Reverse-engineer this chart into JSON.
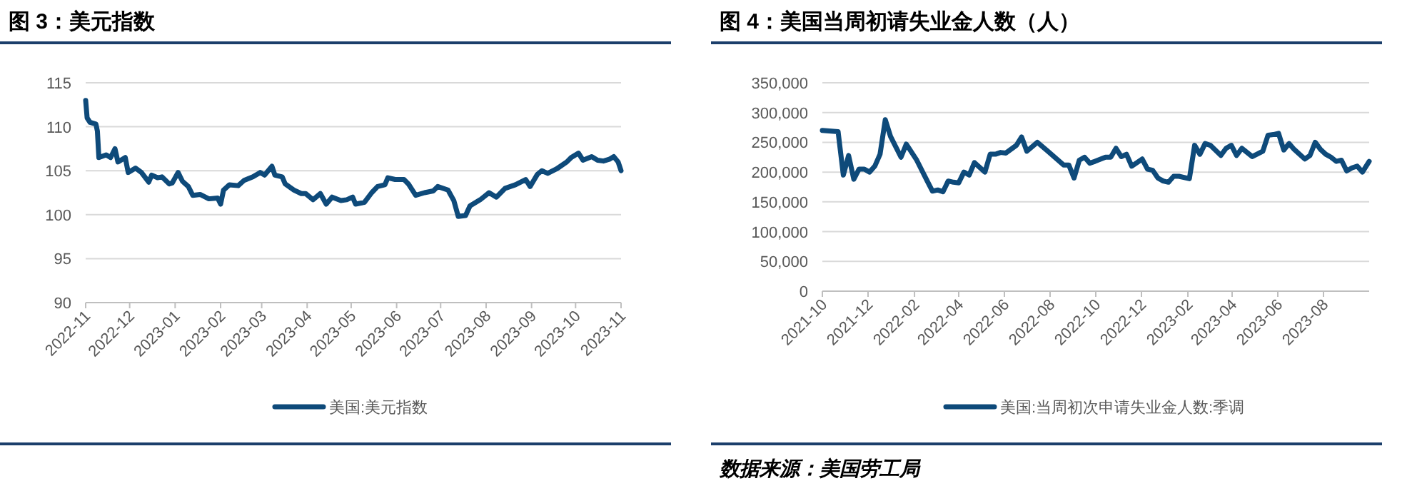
{
  "chart_data": [
    {
      "type": "line",
      "title": "图 3：美元指数",
      "legend": "bottom",
      "grid": "y",
      "xlim": [
        "2022-11-01",
        "2023-11-01"
      ],
      "xticks": [
        {
          "value": "2022-11-01",
          "label": "2022-11"
        },
        {
          "value": "2022-12-01",
          "label": "2022-12"
        },
        {
          "value": "2023-01-01",
          "label": "2023-01"
        },
        {
          "value": "2023-02-01",
          "label": "2023-02"
        },
        {
          "value": "2023-03-01",
          "label": "2023-03"
        },
        {
          "value": "2023-04-01",
          "label": "2023-04"
        },
        {
          "value": "2023-05-01",
          "label": "2023-05"
        },
        {
          "value": "2023-06-01",
          "label": "2023-06"
        },
        {
          "value": "2023-07-01",
          "label": "2023-07"
        },
        {
          "value": "2023-08-01",
          "label": "2023-08"
        },
        {
          "value": "2023-09-01",
          "label": "2023-09"
        },
        {
          "value": "2023-10-01",
          "label": "2023-10"
        },
        {
          "value": "2023-11-01",
          "label": "2023-11"
        }
      ],
      "ylim": [
        90,
        115
      ],
      "yticks": [
        90,
        95,
        100,
        105,
        110,
        115
      ],
      "x": [
        "2022-11-01",
        "2022-11-02",
        "2022-11-04",
        "2022-11-08",
        "2022-11-09",
        "2022-11-10",
        "2022-11-15",
        "2022-11-18",
        "2022-11-21",
        "2022-11-23",
        "2022-11-28",
        "2022-11-30",
        "2022-12-05",
        "2022-12-09",
        "2022-12-14",
        "2022-12-16",
        "2022-12-20",
        "2022-12-23",
        "2022-12-28",
        "2022-12-30",
        "2023-01-03",
        "2023-01-06",
        "2023-01-10",
        "2023-01-13",
        "2023-01-18",
        "2023-01-24",
        "2023-01-30",
        "2023-02-01",
        "2023-02-03",
        "2023-02-07",
        "2023-02-13",
        "2023-02-17",
        "2023-02-23",
        "2023-02-28",
        "2023-03-03",
        "2023-03-08",
        "2023-03-10",
        "2023-03-15",
        "2023-03-17",
        "2023-03-23",
        "2023-03-28",
        "2023-03-31",
        "2023-04-05",
        "2023-04-10",
        "2023-04-14",
        "2023-04-18",
        "2023-04-24",
        "2023-04-28",
        "2023-05-02",
        "2023-05-04",
        "2023-05-10",
        "2023-05-15",
        "2023-05-19",
        "2023-05-24",
        "2023-05-26",
        "2023-05-31",
        "2023-06-06",
        "2023-06-09",
        "2023-06-14",
        "2023-06-20",
        "2023-06-26",
        "2023-06-29",
        "2023-07-06",
        "2023-07-10",
        "2023-07-13",
        "2023-07-18",
        "2023-07-21",
        "2023-07-26",
        "2023-07-28",
        "2023-08-03",
        "2023-08-08",
        "2023-08-14",
        "2023-08-21",
        "2023-08-28",
        "2023-08-31",
        "2023-09-05",
        "2023-09-08",
        "2023-09-12",
        "2023-09-18",
        "2023-09-25",
        "2023-09-28",
        "2023-10-03",
        "2023-10-06",
        "2023-10-12",
        "2023-10-16",
        "2023-10-20",
        "2023-10-24",
        "2023-10-27",
        "2023-10-30",
        "2023-11-01"
      ],
      "series": [
        {
          "name": "美国:美元指数",
          "color": "#0e4a7a",
          "values": [
            113,
            111,
            110.5,
            110.3,
            109.5,
            106.5,
            106.8,
            106.5,
            107.5,
            106,
            106.5,
            104.8,
            105.3,
            104.8,
            103.7,
            104.5,
            104.2,
            104.3,
            103.5,
            103.6,
            104.8,
            103.8,
            103.2,
            102.2,
            102.3,
            101.8,
            101.9,
            101.2,
            102.8,
            103.4,
            103.3,
            103.9,
            104.3,
            104.8,
            104.5,
            105.5,
            104.5,
            104.3,
            103.5,
            102.8,
            102.4,
            102.4,
            101.7,
            102.4,
            101.2,
            102,
            101.6,
            101.7,
            102,
            101.2,
            101.4,
            102.5,
            103.2,
            103.4,
            104.2,
            104,
            104,
            103.5,
            102.2,
            102.5,
            102.7,
            103.2,
            102.8,
            101.6,
            99.8,
            99.9,
            101,
            101.5,
            101.7,
            102.5,
            102,
            103,
            103.4,
            104,
            103.2,
            104.6,
            105,
            104.7,
            105.2,
            106,
            106.5,
            107,
            106.2,
            106.6,
            106.2,
            106.1,
            106.3,
            106.6,
            106,
            105
          ]
        }
      ]
    },
    {
      "type": "line",
      "title": "图 4：美国当周初请失业金人数（人）",
      "legend": "bottom",
      "grid": "y",
      "xlim": [
        "2021-10-01",
        "2023-10-01"
      ],
      "xticks": [
        {
          "value": "2021-10-01",
          "label": "2021-10"
        },
        {
          "value": "2021-12-01",
          "label": "2021-12"
        },
        {
          "value": "2022-02-01",
          "label": "2022-02"
        },
        {
          "value": "2022-04-01",
          "label": "2022-04"
        },
        {
          "value": "2022-06-01",
          "label": "2022-06"
        },
        {
          "value": "2022-08-01",
          "label": "2022-08"
        },
        {
          "value": "2022-10-01",
          "label": "2022-10"
        },
        {
          "value": "2022-12-01",
          "label": "2022-12"
        },
        {
          "value": "2023-02-01",
          "label": "2023-02"
        },
        {
          "value": "2023-04-01",
          "label": "2023-04"
        },
        {
          "value": "2023-06-01",
          "label": "2023-06"
        },
        {
          "value": "2023-08-01",
          "label": "2023-08"
        }
      ],
      "ylim": [
        0,
        350000
      ],
      "yticks": [
        0,
        {
          "value": 50000,
          "label": "50,000"
        },
        {
          "value": 100000,
          "label": "100,000"
        },
        {
          "value": 150000,
          "label": "150,000"
        },
        {
          "value": 200000,
          "label": "200,000"
        },
        {
          "value": 250000,
          "label": "250,000"
        },
        {
          "value": 300000,
          "label": "300,000"
        },
        {
          "value": 350000,
          "label": "350,000"
        }
      ],
      "annotations": [
        "数据来源：美国劳工局"
      ],
      "x": [
        "2021-10-01",
        "2021-10-22",
        "2021-10-29",
        "2021-11-05",
        "2021-11-12",
        "2021-11-19",
        "2021-11-26",
        "2021-12-03",
        "2021-12-10",
        "2021-12-17",
        "2021-12-24",
        "2021-12-31",
        "2022-01-14",
        "2022-01-21",
        "2022-02-04",
        "2022-02-18",
        "2022-02-25",
        "2022-03-04",
        "2022-03-11",
        "2022-03-18",
        "2022-03-25",
        "2022-04-01",
        "2022-04-08",
        "2022-04-15",
        "2022-04-22",
        "2022-05-06",
        "2022-05-13",
        "2022-05-20",
        "2022-05-27",
        "2022-06-03",
        "2022-06-17",
        "2022-06-24",
        "2022-07-01",
        "2022-07-15",
        "2022-07-29",
        "2022-08-19",
        "2022-08-26",
        "2022-09-02",
        "2022-09-09",
        "2022-09-16",
        "2022-09-23",
        "2022-09-30",
        "2022-10-14",
        "2022-10-21",
        "2022-10-28",
        "2022-11-04",
        "2022-11-11",
        "2022-11-18",
        "2022-12-02",
        "2022-12-09",
        "2022-12-16",
        "2022-12-23",
        "2022-12-30",
        "2023-01-06",
        "2023-01-13",
        "2023-01-20",
        "2023-02-03",
        "2023-02-10",
        "2023-02-17",
        "2023-02-24",
        "2023-03-03",
        "2023-03-17",
        "2023-03-24",
        "2023-03-31",
        "2023-04-07",
        "2023-04-14",
        "2023-04-28",
        "2023-05-12",
        "2023-05-19",
        "2023-05-26",
        "2023-06-02",
        "2023-06-09",
        "2023-06-16",
        "2023-06-23",
        "2023-07-07",
        "2023-07-14",
        "2023-07-21",
        "2023-07-28",
        "2023-08-04",
        "2023-08-11",
        "2023-08-18",
        "2023-08-25",
        "2023-09-01",
        "2023-09-08",
        "2023-09-15",
        "2023-09-22",
        "2023-10-01"
      ],
      "series": [
        {
          "name": "美国:当周初次申请失业金人数:季调",
          "color": "#0e4a7a",
          "values": [
            270000,
            268000,
            195000,
            228000,
            188000,
            205000,
            205000,
            200000,
            210000,
            230000,
            288000,
            260000,
            225000,
            247000,
            220000,
            185000,
            168000,
            170000,
            167000,
            185000,
            183000,
            182000,
            200000,
            195000,
            216000,
            200000,
            230000,
            230000,
            233000,
            232000,
            245000,
            259000,
            235000,
            250000,
            235000,
            212000,
            212000,
            190000,
            220000,
            225000,
            215000,
            218000,
            225000,
            225000,
            240000,
            226000,
            230000,
            210000,
            222000,
            205000,
            203000,
            190000,
            185000,
            183000,
            193000,
            193000,
            189000,
            245000,
            230000,
            248000,
            245000,
            228000,
            240000,
            245000,
            228000,
            240000,
            226000,
            235000,
            262000,
            263000,
            265000,
            237000,
            248000,
            238000,
            222000,
            228000,
            250000,
            238000,
            230000,
            225000,
            218000,
            220000,
            202000,
            207000,
            210000,
            200000,
            218000
          ]
        }
      ]
    }
  ]
}
